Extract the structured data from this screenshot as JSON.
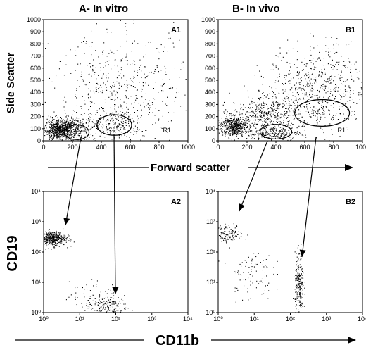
{
  "figure": {
    "col_titles": [
      "A- In vitro",
      "B- In vivo"
    ],
    "scatter_xlabel": "Forward scatter",
    "scatter_ylabel": "Side Scatter",
    "log_xlabel": "CD11b",
    "log_ylabel": "CD19"
  },
  "chart_data": [
    {
      "type": "scatter",
      "panel_label": "A1",
      "gate_label": "R1",
      "xlim": [
        0,
        1000
      ],
      "ylim": [
        0,
        1000
      ],
      "xticks": [
        "0",
        "200",
        "400",
        "600",
        "800",
        "1000"
      ],
      "yticks": [
        "0",
        "100",
        "200",
        "300",
        "400",
        "500",
        "600",
        "700",
        "800",
        "900",
        "1000"
      ],
      "populations": [
        {
          "cx": 110,
          "cy": 90,
          "sx": 50,
          "sy": 40,
          "n": 700
        },
        {
          "cx": 220,
          "cy": 110,
          "sx": 70,
          "sy": 60,
          "n": 250
        },
        {
          "cx": 510,
          "cy": 140,
          "sx": 90,
          "sy": 55,
          "n": 220
        },
        {
          "cx": 550,
          "cy": 420,
          "sx": 240,
          "sy": 230,
          "n": 520
        }
      ],
      "gates": [
        {
          "cx": 230,
          "cy": 70,
          "rx": 85,
          "ry": 60
        },
        {
          "cx": 490,
          "cy": 130,
          "rx": 120,
          "ry": 85
        }
      ]
    },
    {
      "type": "scatter",
      "panel_label": "B1",
      "gate_label": "R1",
      "xlim": [
        0,
        1000
      ],
      "ylim": [
        0,
        1000
      ],
      "xticks": [
        "0",
        "200",
        "400",
        "600",
        "800",
        "1000"
      ],
      "yticks": [
        "0",
        "100",
        "200",
        "300",
        "400",
        "500",
        "600",
        "700",
        "800",
        "900",
        "1000"
      ],
      "populations": [
        {
          "cx": 110,
          "cy": 120,
          "sx": 45,
          "sy": 40,
          "n": 500
        },
        {
          "cx": 330,
          "cy": 210,
          "sx": 120,
          "sy": 80,
          "n": 450
        },
        {
          "cx": 680,
          "cy": 420,
          "sx": 170,
          "sy": 180,
          "n": 650
        },
        {
          "cx": 380,
          "cy": 60,
          "sx": 90,
          "sy": 30,
          "n": 200
        }
      ],
      "gates": [
        {
          "cx": 400,
          "cy": 75,
          "rx": 110,
          "ry": 60
        },
        {
          "cx": 720,
          "cy": 230,
          "rx": 190,
          "ry": 110
        }
      ]
    },
    {
      "type": "scatter",
      "panel_label": "A2",
      "xscale": "log",
      "yscale": "log",
      "xlim": [
        1,
        10000
      ],
      "ylim": [
        1,
        10000
      ],
      "xticks": [
        "10⁰",
        "10¹",
        "10²",
        "10³",
        "10⁴"
      ],
      "yticks": [
        "10⁰",
        "10¹",
        "10²",
        "10³",
        "10⁴"
      ],
      "populations": [
        {
          "cx": 0.25,
          "cy": 2.45,
          "sx": 0.18,
          "sy": 0.12,
          "n": 450
        },
        {
          "cx": 1.75,
          "cy": 0.2,
          "sx": 0.3,
          "sy": 0.15,
          "n": 140
        },
        {
          "cx": 1.4,
          "cy": 0.55,
          "sx": 0.35,
          "sy": 0.25,
          "n": 70
        }
      ]
    },
    {
      "type": "scatter",
      "panel_label": "B2",
      "xscale": "log",
      "yscale": "log",
      "xlim": [
        1,
        10000
      ],
      "ylim": [
        1,
        10000
      ],
      "xticks": [
        "10⁰",
        "10¹",
        "10²",
        "10³",
        "10⁴"
      ],
      "yticks": [
        "10⁰",
        "10¹",
        "10²",
        "10³",
        "10⁴"
      ],
      "populations": [
        {
          "cx": 0.3,
          "cy": 2.6,
          "sx": 0.2,
          "sy": 0.15,
          "n": 120
        },
        {
          "cx": 0.9,
          "cy": 1.3,
          "sx": 0.3,
          "sy": 0.45,
          "n": 90
        },
        {
          "cx": 2.25,
          "cy": 0.9,
          "sx": 0.06,
          "sy": 0.5,
          "n": 230
        }
      ]
    }
  ]
}
